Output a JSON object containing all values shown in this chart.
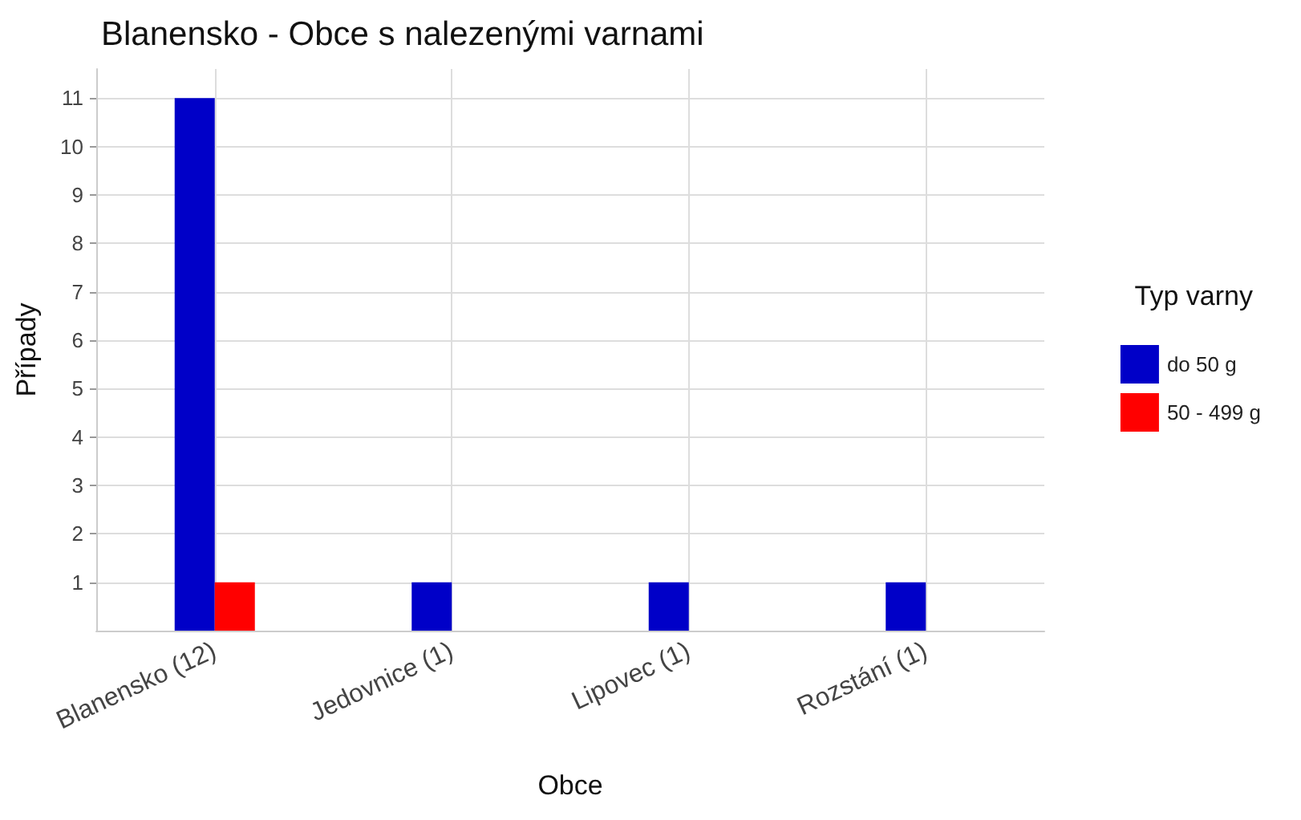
{
  "chart_data": {
    "type": "bar",
    "title": "Blanensko - Obce s nalezenými varnami",
    "xlabel": "Obce",
    "ylabel": "Případy",
    "legend_title": "Typ varny",
    "categories": [
      "Blanensko (12)",
      "Jedovnice (1)",
      "Lipovec (1)",
      "Rozstání (1)"
    ],
    "series": [
      {
        "name": "do 50 g",
        "color": "#0000c8",
        "values": [
          11,
          1,
          1,
          1
        ]
      },
      {
        "name": "50 - 499 g",
        "color": "#ff0000",
        "values": [
          1,
          null,
          null,
          null
        ]
      }
    ],
    "ylim": [
      0,
      11.6
    ],
    "yticks": [
      1,
      2,
      3,
      4,
      5,
      6,
      7,
      8,
      9,
      10,
      11
    ],
    "grid": true,
    "legend": "right"
  }
}
